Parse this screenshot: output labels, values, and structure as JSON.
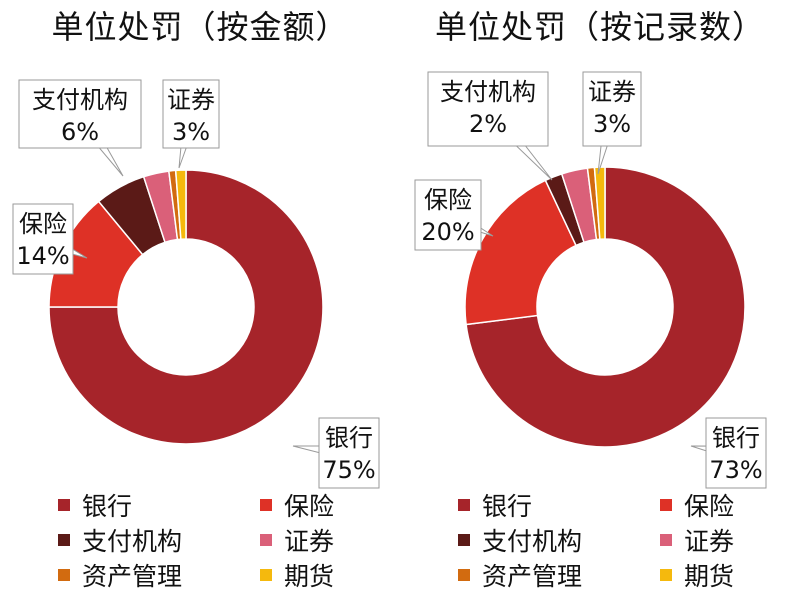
{
  "chart_data": [
    {
      "type": "pie",
      "title": "单位处罚（按金额）",
      "categories": [
        "银行",
        "保险",
        "支付机构",
        "证券",
        "资产管理",
        "期货"
      ],
      "values": [
        75,
        14,
        6,
        3,
        0.8,
        1.2
      ],
      "data_labels": [
        {
          "category": "银行",
          "name": "银行",
          "value": "75%"
        },
        {
          "category": "保险",
          "name": "保险",
          "value": "14%"
        },
        {
          "category": "支付机构",
          "name": "支付机构",
          "value": "6%"
        },
        {
          "category": "证券",
          "name": "证券",
          "value": "3%"
        }
      ],
      "legend_position": "bottom"
    },
    {
      "type": "pie",
      "title": "单位处罚（按记录数）",
      "categories": [
        "银行",
        "保险",
        "支付机构",
        "证券",
        "资产管理",
        "期货"
      ],
      "values": [
        73,
        20,
        2,
        3,
        0.8,
        1.2
      ],
      "data_labels": [
        {
          "category": "银行",
          "name": "银行",
          "value": "73%"
        },
        {
          "category": "保险",
          "name": "保险",
          "value": "20%"
        },
        {
          "category": "支付机构",
          "name": "支付机构",
          "value": "2%"
        },
        {
          "category": "证券",
          "name": "证券",
          "value": "3%"
        }
      ],
      "legend_position": "bottom"
    }
  ],
  "colors": {
    "银行": "#a6242a",
    "保险": "#de3126",
    "支付机构": "#5b1a17",
    "证券": "#da6079",
    "资产管理": "#d26b10",
    "期货": "#f5b90d"
  }
}
